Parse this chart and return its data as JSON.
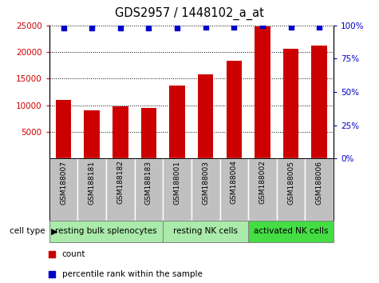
{
  "title": "GDS2957 / 1448102_a_at",
  "samples": [
    "GSM188007",
    "GSM188181",
    "GSM188182",
    "GSM188183",
    "GSM188001",
    "GSM188003",
    "GSM188004",
    "GSM188002",
    "GSM188005",
    "GSM188006"
  ],
  "counts": [
    11000,
    9000,
    9800,
    9500,
    13700,
    15800,
    18400,
    24800,
    20600,
    21200
  ],
  "percentiles": [
    98,
    98,
    98,
    98,
    98,
    99,
    99,
    100,
    99,
    99
  ],
  "cell_types": [
    {
      "label": "resting bulk splenocytes",
      "start": 0,
      "end": 4
    },
    {
      "label": "resting NK cells",
      "start": 4,
      "end": 7
    },
    {
      "label": "activated NK cells",
      "start": 7,
      "end": 10
    }
  ],
  "group_colors": [
    "#aaeaaa",
    "#aaeaaa",
    "#44dd44"
  ],
  "bar_color": "#CC0000",
  "dot_color": "#0000CC",
  "ylim_left": [
    0,
    25000
  ],
  "ylim_right": [
    0,
    100
  ],
  "yticks_left": [
    5000,
    10000,
    15000,
    20000,
    25000
  ],
  "yticks_right": [
    0,
    25,
    50,
    75,
    100
  ],
  "tick_label_color_left": "#CC0000",
  "tick_label_color_right": "#0000CC",
  "bar_width": 0.55,
  "xtick_bg": "#C0C0C0",
  "figsize": [
    4.75,
    3.54
  ],
  "dpi": 100
}
